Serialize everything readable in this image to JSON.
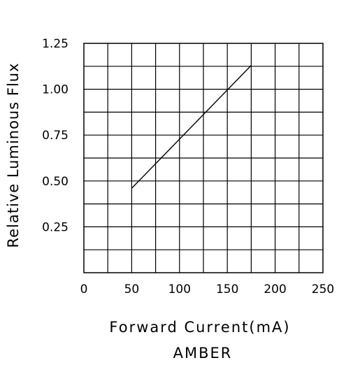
{
  "chart_data": {
    "type": "line",
    "title": "",
    "xlabel": "Forward Current(mA)",
    "ylabel": "Relative Luminous Flux",
    "subtitle": "AMBER",
    "xlim": [
      0,
      250
    ],
    "ylim": [
      0,
      1.25
    ],
    "x_ticks": [
      "0",
      "50",
      "100",
      "150",
      "200",
      "250"
    ],
    "y_ticks": [
      "0.25",
      "0.50",
      "0.75",
      "1.00",
      "1.25"
    ],
    "grid": true,
    "series": [
      {
        "x": [
          50,
          175
        ],
        "y": [
          0.46,
          1.13
        ]
      }
    ]
  }
}
